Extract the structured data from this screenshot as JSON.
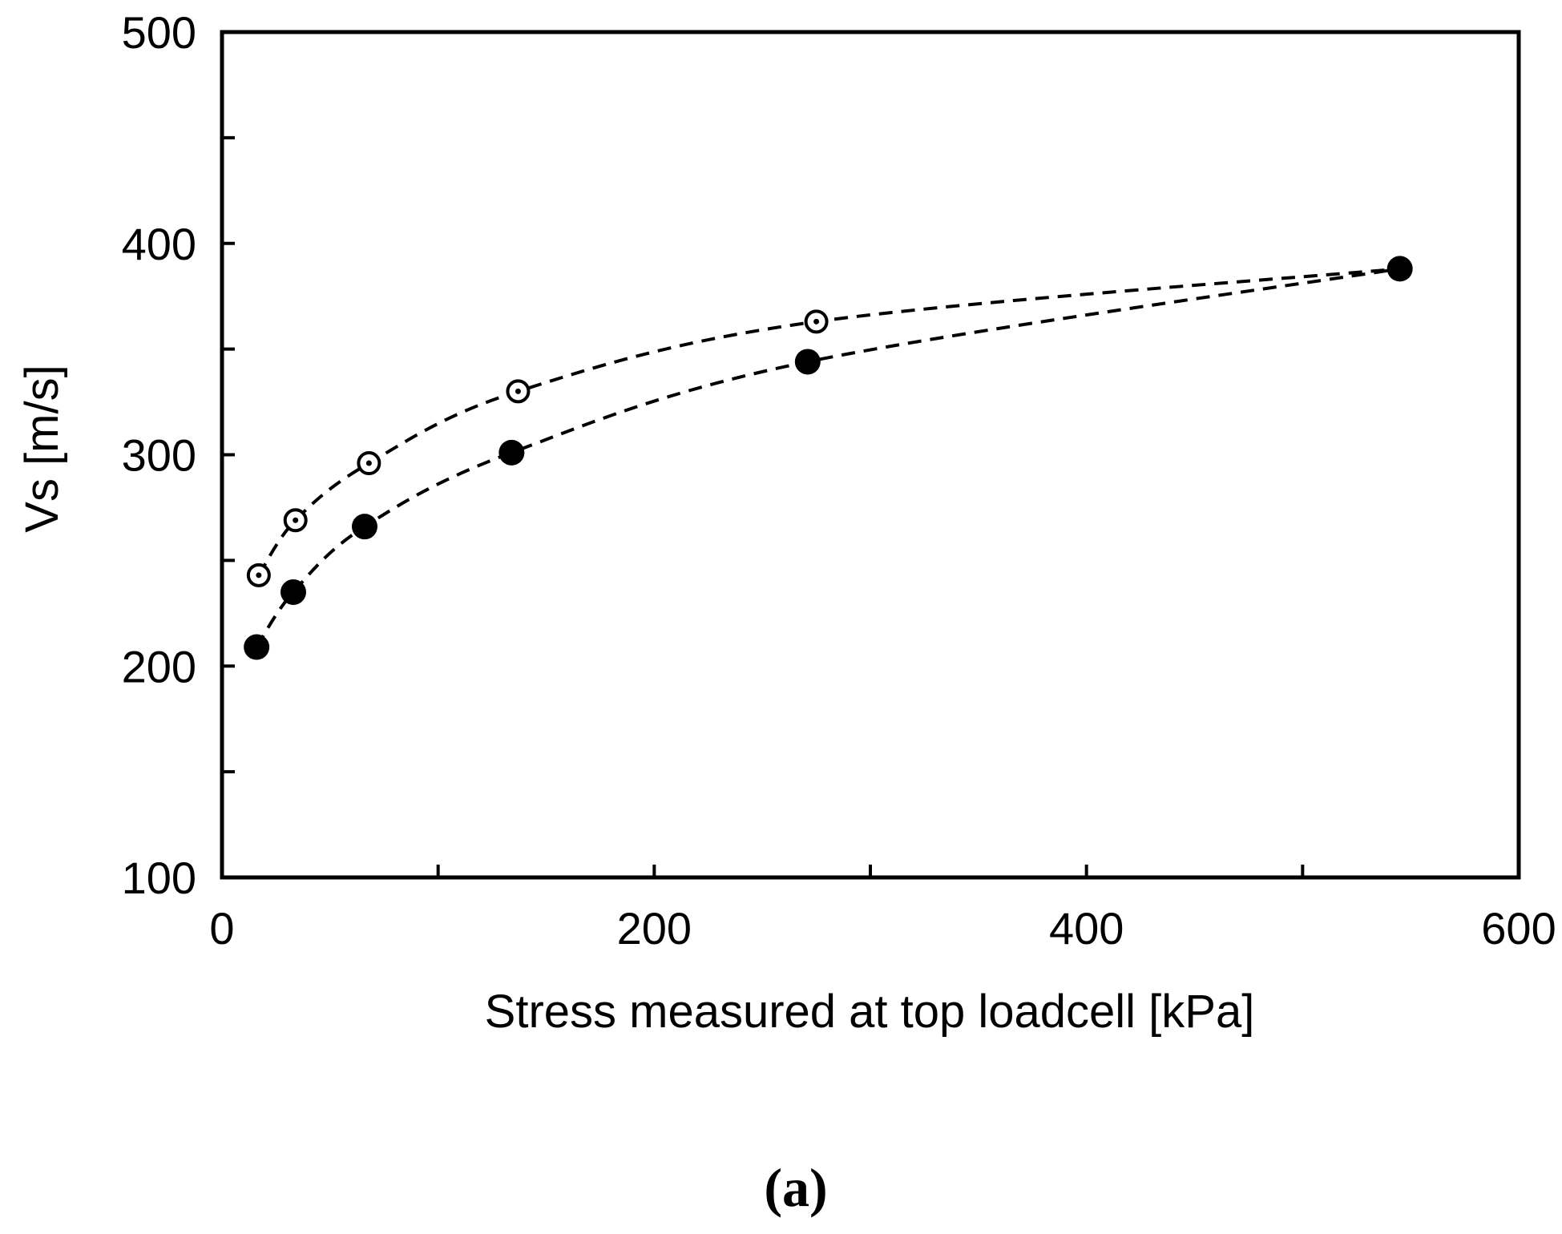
{
  "chart_data": {
    "type": "scatter",
    "title": "",
    "xlabel": "Stress measured at top loadcell [kPa]",
    "ylabel": "Vs [m/s]",
    "xlim": [
      0,
      600
    ],
    "ylim": [
      100,
      500
    ],
    "x_ticks": [
      0,
      200,
      400,
      600
    ],
    "x_tick_labels": [
      "0",
      "200",
      "400",
      "600"
    ],
    "x_minor_ticks": [
      100,
      300,
      500
    ],
    "y_ticks": [
      100,
      200,
      300,
      400,
      500
    ],
    "y_tick_labels": [
      "100",
      "200",
      "300",
      "400",
      "500"
    ],
    "y_minor_ticks": [
      150,
      250,
      350,
      450
    ],
    "grid": false,
    "legend": "none",
    "series": [
      {
        "name": "open markers",
        "marker": "open-circle-dot",
        "line": "dashed",
        "color": "#000000",
        "x": [
          17,
          34,
          68,
          137,
          275
        ],
        "y": [
          243,
          269,
          296,
          330,
          363
        ]
      },
      {
        "name": "filled markers",
        "marker": "filled-circle",
        "line": "dashed",
        "color": "#000000",
        "x": [
          16,
          33,
          66,
          134,
          271,
          545
        ],
        "y": [
          209,
          235,
          266,
          301,
          344,
          388
        ]
      }
    ],
    "open_series_end_join": [
      545,
      388
    ],
    "panel_label": "(a)"
  }
}
